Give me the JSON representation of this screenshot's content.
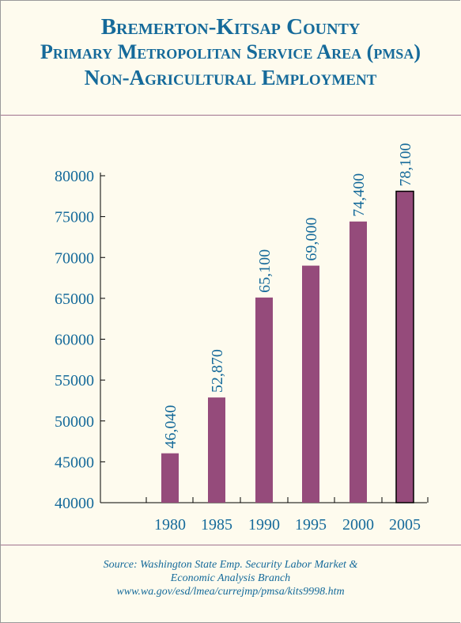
{
  "title": {
    "line1": "Bremerton-Kitsap County",
    "line2": "Primary Metropolitan Service Area (pmsa)",
    "line3": "Non-Agricultural Employment"
  },
  "source": {
    "line1": "Source: Washington State Emp. Security Labor Market &",
    "line2": "Economic Analysis Branch",
    "line3": "www.wa.gov/esd/lmea/currejmp/pmsa/kits9998.htm"
  },
  "colors": {
    "bar": "#954b7b",
    "text": "#156a9a",
    "rule": "#a0728e"
  },
  "chart_data": {
    "type": "bar",
    "categories": [
      "1980",
      "1985",
      "1990",
      "1995",
      "2000",
      "2005"
    ],
    "values": [
      46040,
      52870,
      65100,
      69000,
      74400,
      78100
    ],
    "value_labels": [
      "46,040",
      "52,870",
      "65,100",
      "69,000",
      "74,400",
      "78,100"
    ],
    "y_ticks": [
      "80000",
      "75000",
      "70000",
      "65000",
      "60000",
      "55000",
      "50000",
      "45000",
      "40000"
    ],
    "ylim": [
      40000,
      80000
    ],
    "xlabel": "",
    "ylabel": ""
  }
}
